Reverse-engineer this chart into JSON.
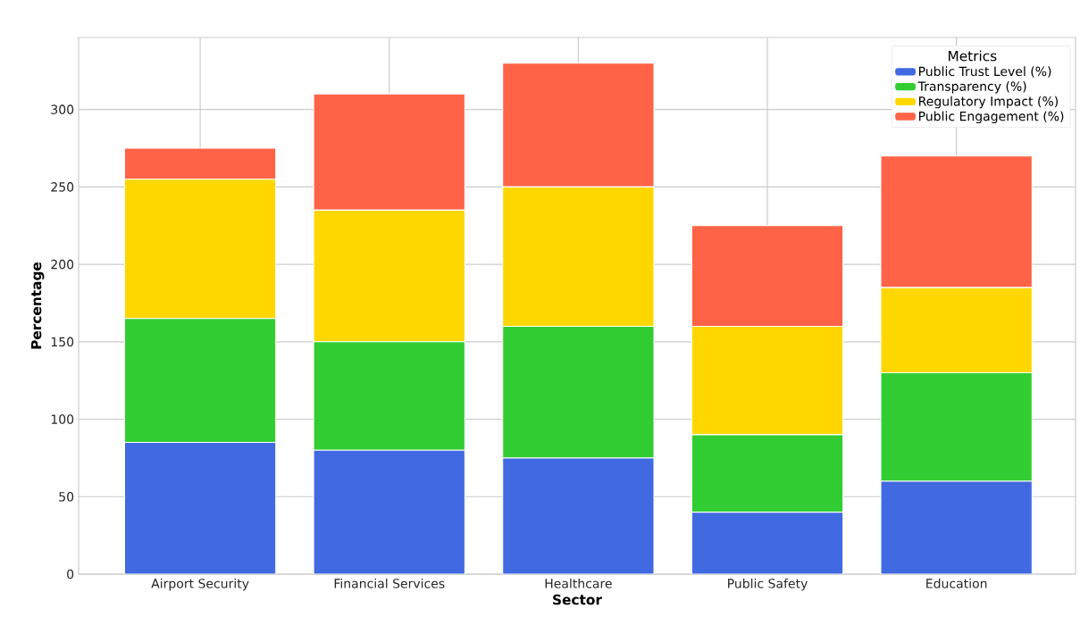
{
  "chart_data": {
    "type": "bar",
    "xlabel": "Sector",
    "ylabel": "Percentage",
    "legend_title": "Metrics",
    "categories": [
      "Airport Security",
      "Financial Services",
      "Healthcare",
      "Public Safety",
      "Education"
    ],
    "series": [
      {
        "name": "Public Trust Level (%)",
        "color": "#4169e1",
        "values": [
          85,
          80,
          75,
          40,
          60
        ]
      },
      {
        "name": "Transparency (%)",
        "color": "#32cd32",
        "values": [
          80,
          70,
          85,
          50,
          70
        ]
      },
      {
        "name": "Regulatory Impact (%)",
        "color": "#ffd700",
        "values": [
          90,
          85,
          90,
          70,
          55
        ]
      },
      {
        "name": "Public Engagement (%)",
        "color": "#ff6347",
        "values": [
          20,
          75,
          80,
          65,
          85
        ]
      }
    ],
    "stacked": true,
    "ylim": [
      0,
      346.5
    ],
    "yticks": [
      0,
      50,
      100,
      150,
      200,
      250,
      300
    ],
    "grid": true,
    "legend": "top right"
  }
}
